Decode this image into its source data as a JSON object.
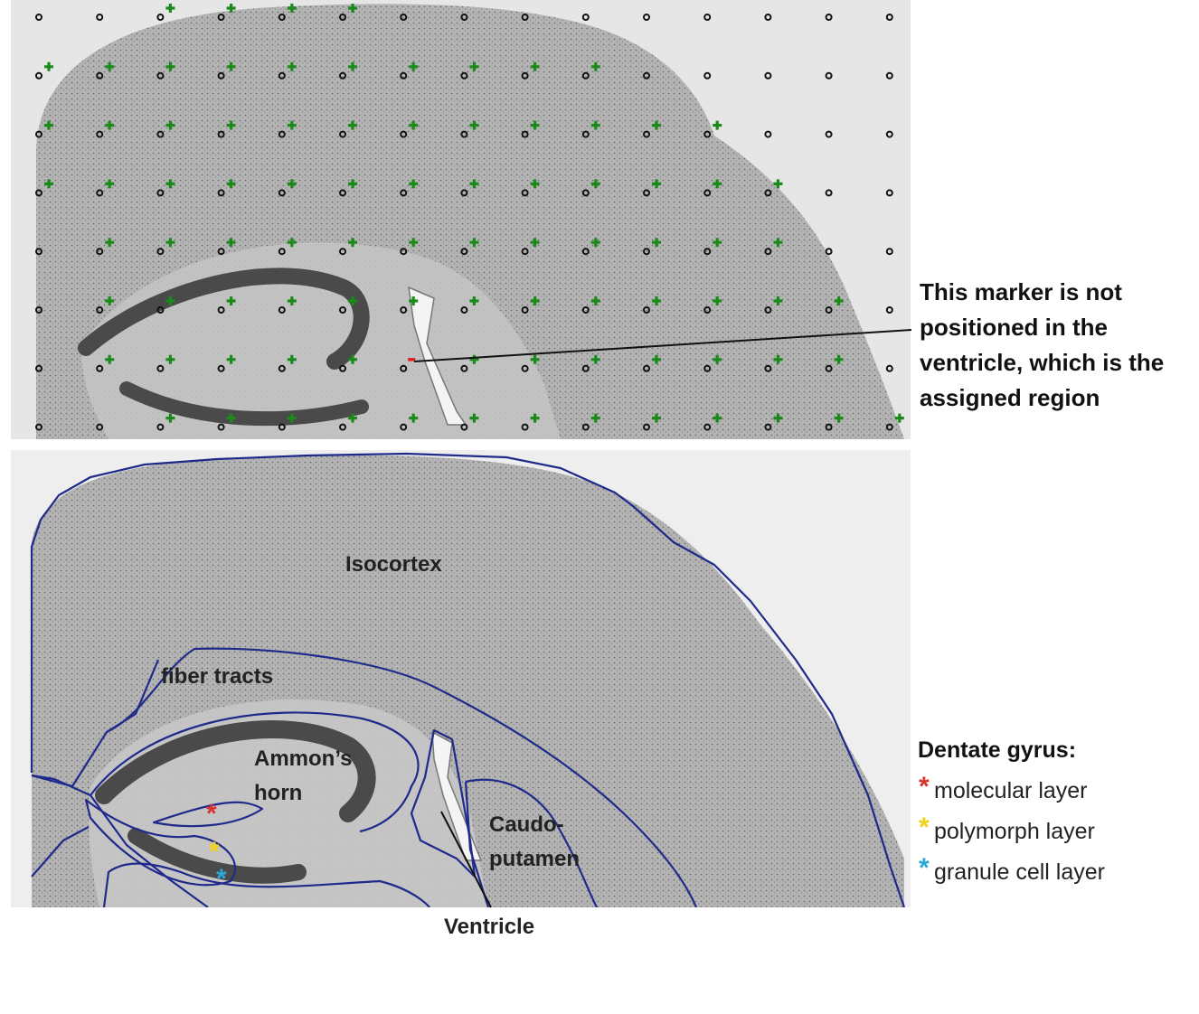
{
  "colors": {
    "marker_inside": "#1b8a1b",
    "marker_outside": "#111111",
    "marker_flagged": "#e02020",
    "region_boundary": "#1f2a8a",
    "molecular_layer": "#d9312d",
    "polymorph_layer": "#f2d21a",
    "granule_cell_layer": "#2aa8d8"
  },
  "top_panel": {
    "marker_grid": {
      "columns": 15,
      "rows": 8,
      "inside_rows": [
        [
          2,
          3,
          4,
          5
        ],
        [
          0,
          1,
          2,
          3,
          4,
          5,
          6,
          7,
          8,
          9
        ],
        [
          0,
          1,
          2,
          3,
          4,
          5,
          6,
          7,
          8,
          9,
          10,
          11
        ],
        [
          0,
          1,
          2,
          3,
          4,
          5,
          6,
          7,
          8,
          9,
          10,
          11,
          12
        ],
        [
          1,
          2,
          3,
          4,
          5,
          6,
          7,
          8,
          9,
          10,
          11,
          12
        ],
        [
          1,
          2,
          3,
          4,
          5,
          6,
          7,
          8,
          9,
          10,
          11,
          12,
          13
        ],
        [
          1,
          2,
          3,
          4,
          5,
          7,
          8,
          9,
          10,
          11,
          12,
          13
        ],
        [
          2,
          3,
          4,
          5,
          6,
          7,
          8,
          9,
          10,
          11,
          12,
          13,
          14
        ]
      ],
      "flagged_marker": {
        "row": 6,
        "column": 6
      }
    },
    "annotation": {
      "lines": [
        "This marker is not",
        "positioned in the",
        "ventricle, which is the",
        "assigned region"
      ]
    }
  },
  "bottom_panel": {
    "regions": {
      "isocortex": "Isocortex",
      "fiber_tracts": "fiber tracts",
      "ammons_horn_line1": "Ammon’s",
      "ammons_horn_line2": "horn",
      "caudoputamen_line1": "Caudo-",
      "caudoputamen_line2": "putamen",
      "ventricle": "Ventricle"
    },
    "legend": {
      "title": "Dentate gyrus:",
      "items": [
        {
          "star": "*",
          "label": "molecular layer",
          "color_key": "molecular_layer"
        },
        {
          "star": "*",
          "label": "polymorph layer",
          "color_key": "polymorph_layer"
        },
        {
          "star": "*",
          "label": "granule cell layer",
          "color_key": "granule_cell_layer"
        }
      ]
    }
  }
}
